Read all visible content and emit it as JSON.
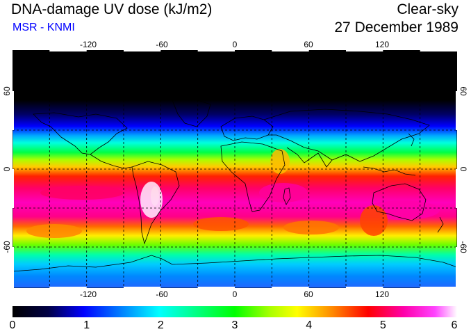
{
  "header": {
    "title": "DNA-damage UV dose (kJ/m2)",
    "subtitle": "MSR - KNMI",
    "mode": "Clear-sky",
    "date": "27 December 1989"
  },
  "colors": {
    "subtitle": "#0000ff",
    "grid": "#000000",
    "coast": "#000000",
    "scale": [
      "#000000",
      "#0000ff",
      "#00ffff",
      "#00ff00",
      "#ffff00",
      "#ff0000",
      "#ff00ff",
      "#ffffff"
    ]
  },
  "map": {
    "lon_ticks": [
      "-120",
      "-60",
      "0",
      "60",
      "120"
    ],
    "lat_ticks_left": [
      "60",
      "0",
      "-60"
    ],
    "lat_ticks_right": [
      "60",
      "0",
      "-60"
    ]
  },
  "colorbar": {
    "ticks": [
      "0",
      "1",
      "2",
      "3",
      "4",
      "5",
      "6"
    ],
    "min": 0,
    "max": 6
  }
}
